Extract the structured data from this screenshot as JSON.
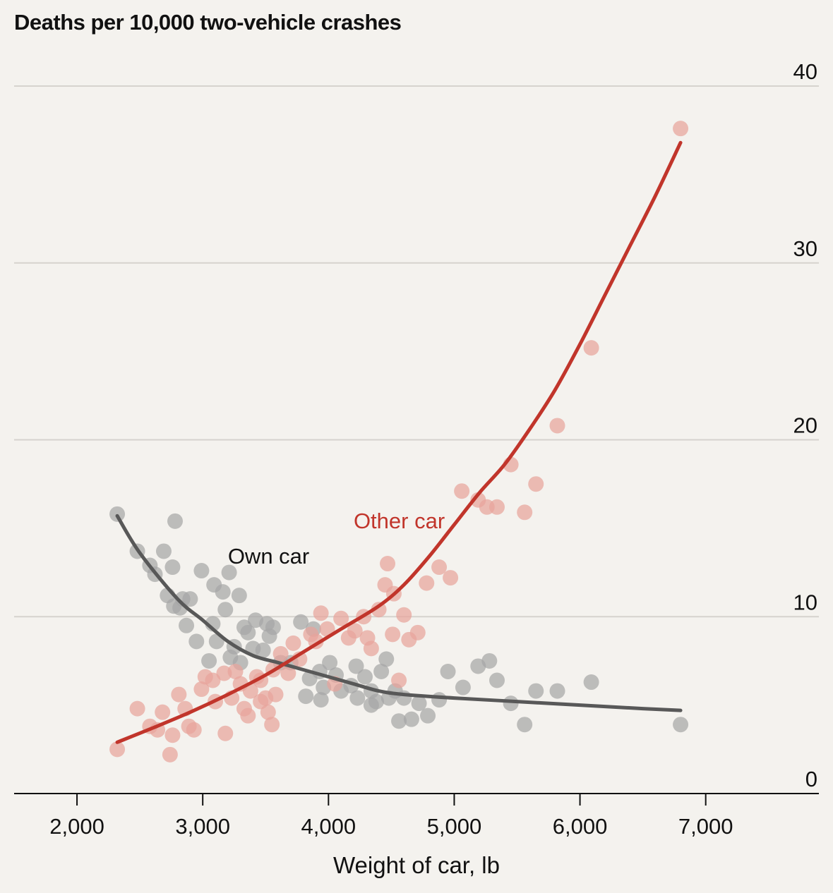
{
  "chart_data": {
    "type": "scatter",
    "title": "Deaths per 10,000 two-vehicle crashes",
    "xlabel": "Weight of car, lb",
    "ylabel": "",
    "xlim": [
      1500,
      7900
    ],
    "ylim": [
      0,
      40
    ],
    "x_ticks": [
      2000,
      3000,
      4000,
      5000,
      6000,
      7000
    ],
    "x_tick_labels": [
      "2,000",
      "3,000",
      "4,000",
      "5,000",
      "6,000",
      "7,000"
    ],
    "y_ticks": [
      0,
      10,
      20,
      30,
      40
    ],
    "y_tick_labels": [
      "0",
      "10",
      "20",
      "30",
      "40"
    ],
    "grid": true,
    "series": [
      {
        "name": "Own car",
        "color": "#585858",
        "point_color": "#a6a6a6",
        "points": [
          [
            2320,
            15.8
          ],
          [
            2780,
            15.4
          ],
          [
            2480,
            13.7
          ],
          [
            2690,
            13.7
          ],
          [
            2580,
            12.9
          ],
          [
            2760,
            12.8
          ],
          [
            2620,
            12.4
          ],
          [
            2990,
            12.6
          ],
          [
            3210,
            12.5
          ],
          [
            3090,
            11.8
          ],
          [
            3160,
            11.4
          ],
          [
            3290,
            11.2
          ],
          [
            2720,
            11.2
          ],
          [
            2840,
            11.0
          ],
          [
            2900,
            11.0
          ],
          [
            2770,
            10.6
          ],
          [
            2820,
            10.5
          ],
          [
            3180,
            10.4
          ],
          [
            2870,
            9.5
          ],
          [
            3080,
            9.6
          ],
          [
            3330,
            9.4
          ],
          [
            3420,
            9.8
          ],
          [
            3510,
            9.6
          ],
          [
            3560,
            9.4
          ],
          [
            2950,
            8.6
          ],
          [
            3110,
            8.6
          ],
          [
            3250,
            8.3
          ],
          [
            3360,
            9.1
          ],
          [
            3400,
            8.2
          ],
          [
            3480,
            8.1
          ],
          [
            3530,
            8.9
          ],
          [
            3780,
            9.7
          ],
          [
            3880,
            9.3
          ],
          [
            3050,
            7.5
          ],
          [
            3220,
            7.7
          ],
          [
            3300,
            7.4
          ],
          [
            3620,
            7.4
          ],
          [
            3700,
            7.4
          ],
          [
            3850,
            6.5
          ],
          [
            3930,
            6.9
          ],
          [
            4010,
            7.4
          ],
          [
            4060,
            6.7
          ],
          [
            3960,
            6.0
          ],
          [
            4100,
            5.8
          ],
          [
            4180,
            6.1
          ],
          [
            4220,
            7.2
          ],
          [
            4290,
            6.6
          ],
          [
            4340,
            5.8
          ],
          [
            4420,
            6.9
          ],
          [
            4460,
            7.6
          ],
          [
            4380,
            5.2
          ],
          [
            4480,
            5.4
          ],
          [
            4530,
            5.8
          ],
          [
            4600,
            5.4
          ],
          [
            4340,
            5.0
          ],
          [
            4720,
            5.1
          ],
          [
            4880,
            5.3
          ],
          [
            4950,
            6.9
          ],
          [
            5070,
            6.0
          ],
          [
            5190,
            7.2
          ],
          [
            5280,
            7.5
          ],
          [
            5340,
            6.4
          ],
          [
            4560,
            4.1
          ],
          [
            4660,
            4.2
          ],
          [
            4790,
            4.4
          ],
          [
            5450,
            5.1
          ],
          [
            5560,
            3.9
          ],
          [
            5650,
            5.8
          ],
          [
            5820,
            5.8
          ],
          [
            6090,
            6.3
          ],
          [
            6800,
            3.9
          ],
          [
            3820,
            5.5
          ],
          [
            3940,
            5.3
          ],
          [
            4230,
            5.4
          ]
        ],
        "curve": [
          [
            2320,
            15.7
          ],
          [
            2500,
            13.6
          ],
          [
            2800,
            11.0
          ],
          [
            3000,
            9.8
          ],
          [
            3200,
            8.6
          ],
          [
            3400,
            7.8
          ],
          [
            3600,
            7.4
          ],
          [
            3800,
            7.0
          ],
          [
            4000,
            6.6
          ],
          [
            4200,
            6.2
          ],
          [
            4400,
            5.8
          ],
          [
            4600,
            5.6
          ],
          [
            5000,
            5.4
          ],
          [
            5500,
            5.2
          ],
          [
            6000,
            5.0
          ],
          [
            6500,
            4.8
          ],
          [
            6800,
            4.7
          ]
        ]
      },
      {
        "name": "Other car",
        "color": "#c1352b",
        "point_color": "#e8a49b",
        "points": [
          [
            2320,
            2.5
          ],
          [
            2480,
            4.8
          ],
          [
            2580,
            3.8
          ],
          [
            2680,
            4.6
          ],
          [
            2640,
            3.6
          ],
          [
            2760,
            3.3
          ],
          [
            2740,
            2.2
          ],
          [
            2810,
            5.6
          ],
          [
            2860,
            4.8
          ],
          [
            2890,
            3.8
          ],
          [
            2930,
            3.6
          ],
          [
            2990,
            5.9
          ],
          [
            3020,
            6.6
          ],
          [
            3080,
            6.4
          ],
          [
            3100,
            5.2
          ],
          [
            3170,
            6.8
          ],
          [
            3230,
            5.4
          ],
          [
            3180,
            3.4
          ],
          [
            3260,
            6.9
          ],
          [
            3300,
            6.2
          ],
          [
            3330,
            4.8
          ],
          [
            3380,
            5.8
          ],
          [
            3430,
            6.6
          ],
          [
            3460,
            5.2
          ],
          [
            3500,
            5.4
          ],
          [
            3520,
            4.6
          ],
          [
            3550,
            3.9
          ],
          [
            3580,
            5.6
          ],
          [
            3620,
            7.9
          ],
          [
            3680,
            6.8
          ],
          [
            3720,
            8.5
          ],
          [
            3770,
            7.6
          ],
          [
            3860,
            9.0
          ],
          [
            3900,
            8.6
          ],
          [
            3940,
            10.2
          ],
          [
            3990,
            9.3
          ],
          [
            4050,
            6.2
          ],
          [
            4100,
            9.9
          ],
          [
            4160,
            8.8
          ],
          [
            4210,
            9.2
          ],
          [
            4280,
            10.0
          ],
          [
            4310,
            8.8
          ],
          [
            4340,
            8.2
          ],
          [
            4400,
            10.4
          ],
          [
            4450,
            11.8
          ],
          [
            4470,
            13.0
          ],
          [
            4520,
            11.3
          ],
          [
            4510,
            9.0
          ],
          [
            4600,
            10.1
          ],
          [
            4640,
            8.7
          ],
          [
            4710,
            9.1
          ],
          [
            4780,
            11.9
          ],
          [
            4880,
            12.8
          ],
          [
            4970,
            12.2
          ],
          [
            5060,
            17.1
          ],
          [
            5190,
            16.6
          ],
          [
            5260,
            16.2
          ],
          [
            5340,
            16.2
          ],
          [
            5450,
            18.6
          ],
          [
            5560,
            15.9
          ],
          [
            5650,
            17.5
          ],
          [
            5820,
            20.8
          ],
          [
            6090,
            25.2
          ],
          [
            6800,
            37.6
          ],
          [
            3360,
            4.4
          ],
          [
            3460,
            6.4
          ],
          [
            3560,
            7.0
          ],
          [
            4560,
            6.4
          ]
        ],
        "curve": [
          [
            2320,
            2.9
          ],
          [
            2600,
            3.7
          ],
          [
            2900,
            4.6
          ],
          [
            3200,
            5.6
          ],
          [
            3500,
            6.7
          ],
          [
            3800,
            8.0
          ],
          [
            4100,
            9.3
          ],
          [
            4400,
            10.6
          ],
          [
            4600,
            11.8
          ],
          [
            4800,
            13.4
          ],
          [
            5000,
            15.2
          ],
          [
            5200,
            17.0
          ],
          [
            5400,
            18.6
          ],
          [
            5600,
            20.6
          ],
          [
            5800,
            22.8
          ],
          [
            6000,
            25.4
          ],
          [
            6200,
            28.2
          ],
          [
            6400,
            31.0
          ],
          [
            6600,
            33.8
          ],
          [
            6800,
            36.8
          ]
        ]
      }
    ]
  }
}
